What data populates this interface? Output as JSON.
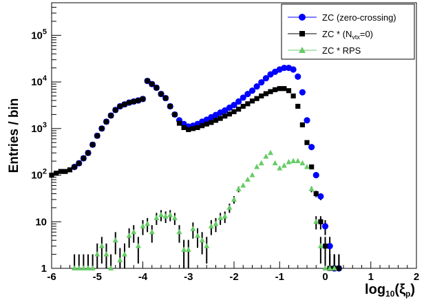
{
  "chart_data": {
    "type": "scatter",
    "xlabel": "log",
    "xlabel_sub": "10",
    "xlabel_tail_open": "(ξ",
    "xlabel_tail_sub": "p",
    "xlabel_tail_close": ")",
    "ylabel": "Entries / bin",
    "xlim": [
      -6,
      2
    ],
    "ylim": [
      1,
      500000
    ],
    "yscale": "log",
    "grid": false,
    "legend_position": "top-right",
    "x_ticks": [
      {
        "value": -6,
        "label": "-6"
      },
      {
        "value": -5,
        "label": "-5"
      },
      {
        "value": -4,
        "label": "-4"
      },
      {
        "value": -3,
        "label": "-3"
      },
      {
        "value": -2,
        "label": "-2"
      },
      {
        "value": -1,
        "label": "-1"
      },
      {
        "value": 0,
        "label": "0"
      },
      {
        "value": 1,
        "label": "1"
      },
      {
        "value": 2,
        "label": "2"
      }
    ],
    "y_ticks": [
      {
        "value": 1,
        "base": "1",
        "exp": ""
      },
      {
        "value": 10,
        "base": "10",
        "exp": ""
      },
      {
        "value": 100,
        "base": "10",
        "exp": "2"
      },
      {
        "value": 1000,
        "base": "10",
        "exp": "3"
      },
      {
        "value": 10000,
        "base": "10",
        "exp": "4"
      },
      {
        "value": 100000,
        "base": "10",
        "exp": "5"
      }
    ],
    "series": [
      {
        "name": "ZC (zero-crossing)",
        "marker": "circle",
        "color": "#0000ff",
        "x": [
          -5.5,
          -5.4,
          -5.3,
          -5.2,
          -5.1,
          -5.0,
          -4.9,
          -4.8,
          -4.7,
          -4.6,
          -4.5,
          -4.4,
          -4.3,
          -4.2,
          -4.1,
          -4.0,
          -3.9,
          -3.8,
          -3.7,
          -3.6,
          -3.5,
          -3.4,
          -3.3,
          -3.2,
          -3.1,
          -3.0,
          -2.9,
          -2.8,
          -2.7,
          -2.6,
          -2.5,
          -2.4,
          -2.3,
          -2.2,
          -2.1,
          -2.0,
          -1.9,
          -1.8,
          -1.7,
          -1.6,
          -1.5,
          -1.4,
          -1.3,
          -1.2,
          -1.1,
          -1.0,
          -0.9,
          -0.8,
          -0.7,
          -0.6,
          -0.5,
          -0.4,
          -0.3,
          -0.2,
          -0.1,
          0.0,
          0.1,
          0.2,
          0.3
        ],
        "y": [
          150,
          180,
          230,
          300,
          450,
          700,
          1000,
          1400,
          1900,
          2500,
          3000,
          3300,
          3600,
          3800,
          4000,
          4300,
          10500,
          9000,
          7500,
          5500,
          4500,
          3000,
          2000,
          1500,
          1250,
          1100,
          1150,
          1250,
          1400,
          1550,
          1750,
          1950,
          2200,
          2450,
          2800,
          3200,
          3800,
          4600,
          5500,
          6500,
          8000,
          9800,
          12000,
          14500,
          16500,
          18500,
          20000,
          20000,
          18500,
          13000,
          6000,
          1500,
          400,
          100,
          35,
          8,
          3,
          1,
          1
        ]
      },
      {
        "name": "ZC * (N",
        "name_sub": "vtx",
        "name_tail": "=0)",
        "marker": "square",
        "color": "#000000",
        "x": [
          -6.0,
          -5.9,
          -5.8,
          -5.7,
          -5.6,
          -5.5,
          -5.4,
          -5.3,
          -5.2,
          -5.1,
          -5.0,
          -4.9,
          -4.8,
          -4.7,
          -4.6,
          -4.5,
          -4.4,
          -4.3,
          -4.2,
          -4.1,
          -4.0,
          -3.9,
          -3.8,
          -3.7,
          -3.6,
          -3.5,
          -3.4,
          -3.3,
          -3.2,
          -3.1,
          -3.0,
          -2.9,
          -2.8,
          -2.7,
          -2.6,
          -2.5,
          -2.4,
          -2.3,
          -2.2,
          -2.1,
          -2.0,
          -1.9,
          -1.8,
          -1.7,
          -1.6,
          -1.5,
          -1.4,
          -1.3,
          -1.2,
          -1.1,
          -1.0,
          -0.9,
          -0.8,
          -0.7,
          -0.6,
          -0.5,
          -0.4,
          -0.3,
          -0.2,
          -0.1,
          0.0,
          0.1,
          0.2,
          0.3
        ],
        "y": [
          100,
          110,
          120,
          120,
          130,
          150,
          180,
          230,
          300,
          450,
          700,
          1000,
          1400,
          1900,
          2500,
          3000,
          3300,
          3600,
          3800,
          4000,
          4300,
          10500,
          9000,
          7500,
          5500,
          4500,
          3000,
          2000,
          1300,
          1050,
          950,
          1000,
          1050,
          1150,
          1250,
          1350,
          1500,
          1650,
          1850,
          2050,
          2300,
          2600,
          3000,
          3400,
          3900,
          4400,
          5000,
          5600,
          6200,
          6800,
          7200,
          7200,
          6500,
          5000,
          3000,
          1200,
          500,
          150,
          40,
          10,
          3,
          1,
          1,
          1
        ]
      },
      {
        "name": "ZC * RPS",
        "marker": "triangle",
        "color": "#66cc66",
        "x": [
          -5.5,
          -5.4,
          -5.3,
          -5.2,
          -5.1,
          -5.0,
          -4.9,
          -4.8,
          -4.7,
          -4.6,
          -4.5,
          -4.4,
          -4.3,
          -4.2,
          -4.1,
          -4.0,
          -3.9,
          -3.8,
          -3.7,
          -3.6,
          -3.5,
          -3.4,
          -3.3,
          -3.2,
          -3.1,
          -3.0,
          -2.9,
          -2.8,
          -2.7,
          -2.6,
          -2.5,
          -2.4,
          -2.3,
          -2.2,
          -2.1,
          -2.0,
          -1.9,
          -1.8,
          -1.7,
          -1.6,
          -1.5,
          -1.4,
          -1.3,
          -1.2,
          -1.1,
          -1.0,
          -0.9,
          -0.8,
          -0.7,
          -0.6,
          -0.5,
          -0.4,
          -0.3,
          -0.2,
          -0.1,
          0.0,
          0.1,
          0.2
        ],
        "y": [
          1,
          1,
          1,
          1,
          1,
          2,
          3,
          2,
          1,
          4,
          1.5,
          2,
          5,
          6,
          3,
          8,
          9,
          6,
          12,
          14,
          13,
          14,
          12,
          6,
          2.5,
          2.5,
          7,
          5,
          4,
          3,
          8,
          9,
          12,
          13,
          20,
          30,
          50,
          60,
          80,
          100,
          150,
          180,
          250,
          300,
          180,
          140,
          160,
          190,
          200,
          200,
          180,
          150,
          50,
          10,
          3,
          1,
          1,
          1
        ]
      }
    ]
  }
}
